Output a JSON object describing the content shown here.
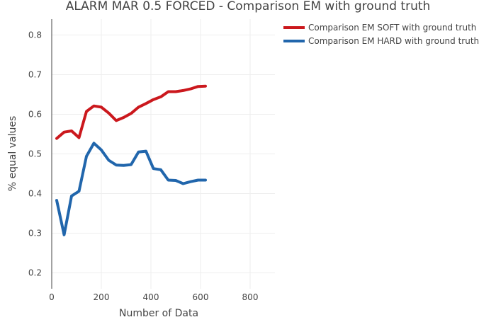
{
  "chart_data": {
    "type": "line",
    "title": "ALARM MAR 0.5 FORCED - Comparison EM with ground truth",
    "xlabel": "Number of Data",
    "ylabel": "% equal values",
    "xlim": [
      0,
      900
    ],
    "ylim": [
      0.16,
      0.84
    ],
    "x_ticks": [
      0,
      200,
      400,
      600,
      800
    ],
    "y_ticks": [
      0.2,
      0.3,
      0.4,
      0.5,
      0.6,
      0.7,
      0.8
    ],
    "x_tick_labels": [
      "0",
      "200",
      "400",
      "600",
      "800"
    ],
    "y_tick_labels": [
      "0.2",
      "0.3",
      "0.4",
      "0.5",
      "0.6",
      "0.7",
      "0.8"
    ],
    "grid": true,
    "legend_position": "top-right",
    "series": [
      {
        "name": "Comparison EM SOFT with ground truth",
        "color": "#cb181d",
        "x": [
          20,
          50,
          80,
          110,
          140,
          170,
          200,
          230,
          260,
          290,
          320,
          350,
          380,
          410,
          440,
          470,
          500,
          530,
          560,
          590,
          620
        ],
        "y": [
          0.539,
          0.555,
          0.558,
          0.541,
          0.607,
          0.621,
          0.618,
          0.603,
          0.584,
          0.592,
          0.602,
          0.618,
          0.627,
          0.637,
          0.644,
          0.657,
          0.657,
          0.66,
          0.664,
          0.67,
          0.671
        ]
      },
      {
        "name": "Comparison EM HARD with ground truth",
        "color": "#2166ac",
        "x": [
          20,
          50,
          80,
          110,
          140,
          170,
          200,
          230,
          260,
          290,
          320,
          350,
          380,
          410,
          440,
          470,
          500,
          530,
          560,
          590,
          620
        ],
        "y": [
          0.383,
          0.296,
          0.394,
          0.406,
          0.494,
          0.527,
          0.51,
          0.484,
          0.472,
          0.471,
          0.473,
          0.505,
          0.507,
          0.463,
          0.46,
          0.434,
          0.433,
          0.425,
          0.43,
          0.434,
          0.434
        ]
      }
    ]
  }
}
